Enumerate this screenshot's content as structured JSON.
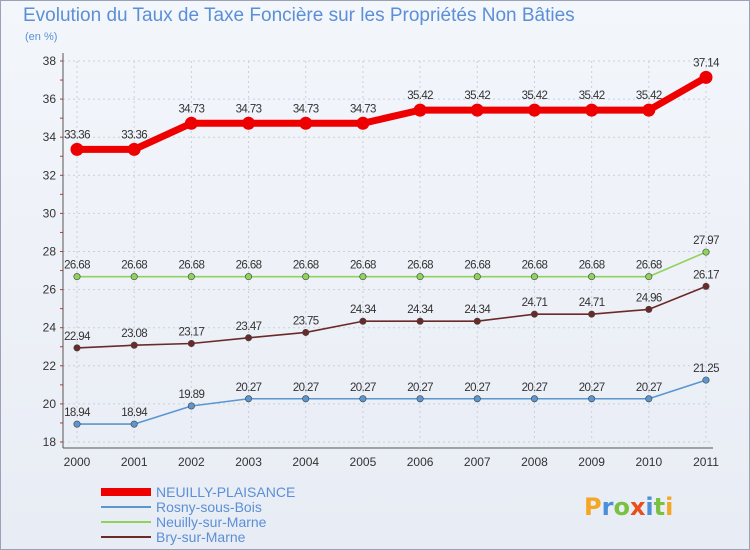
{
  "chart_data": {
    "type": "line",
    "title": "Evolution du Taux de Taxe Foncière sur les Propriétés Non Bâties",
    "ylabel": "(en %)",
    "xlabel": "",
    "x": [
      "2000",
      "2001",
      "2002",
      "2003",
      "2004",
      "2005",
      "2006",
      "2007",
      "2008",
      "2009",
      "2010",
      "2011"
    ],
    "ylim": [
      18,
      38
    ],
    "yticks": [
      "18",
      "20",
      "22",
      "24",
      "26",
      "28",
      "30",
      "32",
      "34",
      "36",
      "38"
    ],
    "grid": true,
    "legend_position": "bottom-left",
    "series": [
      {
        "name": "NEUILLY-PLAISANCE",
        "color": "#ee0000",
        "values": [
          33.36,
          33.36,
          34.73,
          34.73,
          34.73,
          34.73,
          35.42,
          35.42,
          35.42,
          35.42,
          35.42,
          37.14
        ],
        "labels": [
          "33.36",
          "33.36",
          "34.73",
          "34.73",
          "34.73",
          "34.73",
          "35.42",
          "35.42",
          "35.42",
          "35.42",
          "35.42",
          "37.14"
        ]
      },
      {
        "name": "Rosny-sous-Bois",
        "color": "#5b96d0",
        "values": [
          18.94,
          18.94,
          19.89,
          20.27,
          20.27,
          20.27,
          20.27,
          20.27,
          20.27,
          20.27,
          20.27,
          21.25
        ],
        "labels": [
          "18.94",
          "18.94",
          "19.89",
          "20.27",
          "20.27",
          "20.27",
          "20.27",
          "20.27",
          "20.27",
          "20.27",
          "20.27",
          "21.25"
        ]
      },
      {
        "name": "Neuilly-sur-Marne",
        "color": "#8fd35a",
        "values": [
          26.68,
          26.68,
          26.68,
          26.68,
          26.68,
          26.68,
          26.68,
          26.68,
          26.68,
          26.68,
          26.68,
          27.97
        ],
        "labels": [
          "26.68",
          "26.68",
          "26.68",
          "26.68",
          "26.68",
          "26.68",
          "26.68",
          "26.68",
          "26.68",
          "26.68",
          "26.68",
          "27.97"
        ]
      },
      {
        "name": "Bry-sur-Marne",
        "color": "#6b2a2a",
        "values": [
          22.94,
          23.08,
          23.17,
          23.47,
          23.75,
          24.34,
          24.34,
          24.34,
          24.71,
          24.71,
          24.96,
          26.17
        ],
        "labels": [
          "22.94",
          "23.08",
          "23.17",
          "23.47",
          "23.75",
          "24.34",
          "24.34",
          "24.34",
          "24.71",
          "24.71",
          "24.96",
          "26.17"
        ]
      }
    ]
  },
  "logo": {
    "letters": [
      "P",
      "r",
      "o",
      "x",
      "i",
      "t",
      "i"
    ],
    "colors": [
      "#f5a623",
      "#4a90d9",
      "#7ac142",
      "#e94e1b",
      "#4a90d9",
      "#7ac142",
      "#f5a623"
    ]
  }
}
